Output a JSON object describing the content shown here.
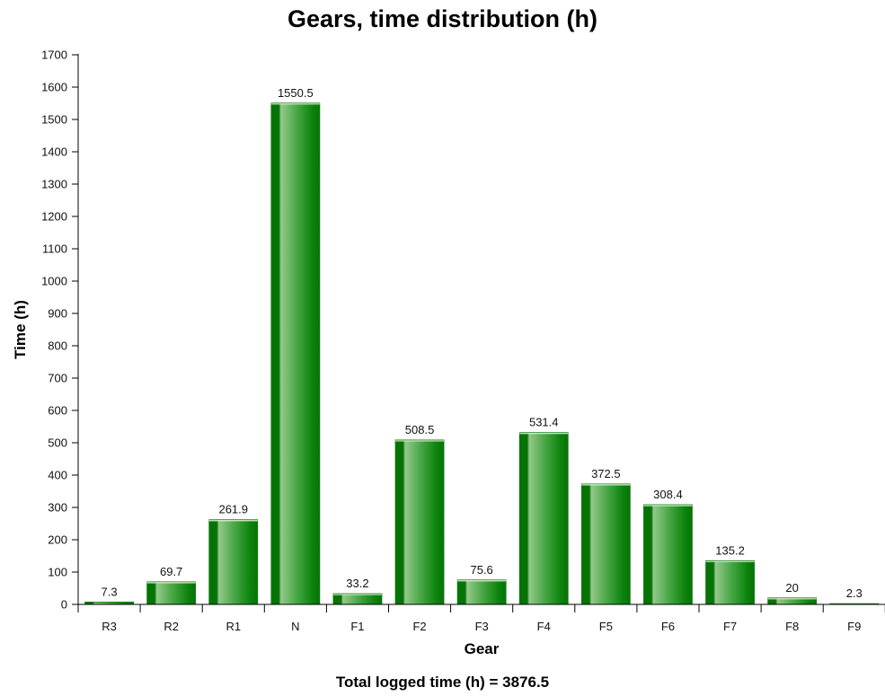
{
  "chart_data": {
    "type": "bar",
    "title": "Gears, time distribution (h)",
    "xlabel": "Gear",
    "ylabel": "Time (h)",
    "categories": [
      "R3",
      "R2",
      "R1",
      "N",
      "F1",
      "F2",
      "F3",
      "F4",
      "F5",
      "F6",
      "F7",
      "F8",
      "F9"
    ],
    "values": [
      7.3,
      69.7,
      261.9,
      1550.5,
      33.2,
      508.5,
      75.6,
      531.4,
      372.5,
      308.4,
      135.2,
      20,
      2.3
    ],
    "data_labels": [
      "7.3",
      "69.7",
      "261.9",
      "1550.5",
      "33.2",
      "508.5",
      "75.6",
      "531.4",
      "372.5",
      "308.4",
      "135.2",
      "20",
      "2.3"
    ],
    "ylim": [
      0,
      1700
    ],
    "yticks": [
      0,
      100,
      200,
      300,
      400,
      500,
      600,
      700,
      800,
      900,
      1000,
      1100,
      1200,
      1300,
      1400,
      1500,
      1600,
      1700
    ],
    "grid": false,
    "legend": "none",
    "footer": "Total logged time (h) = 3876.5",
    "colors": {
      "bar_dark": "#0a7a0a",
      "bar_light": "#b9dfb0",
      "axis": "#000000"
    }
  }
}
